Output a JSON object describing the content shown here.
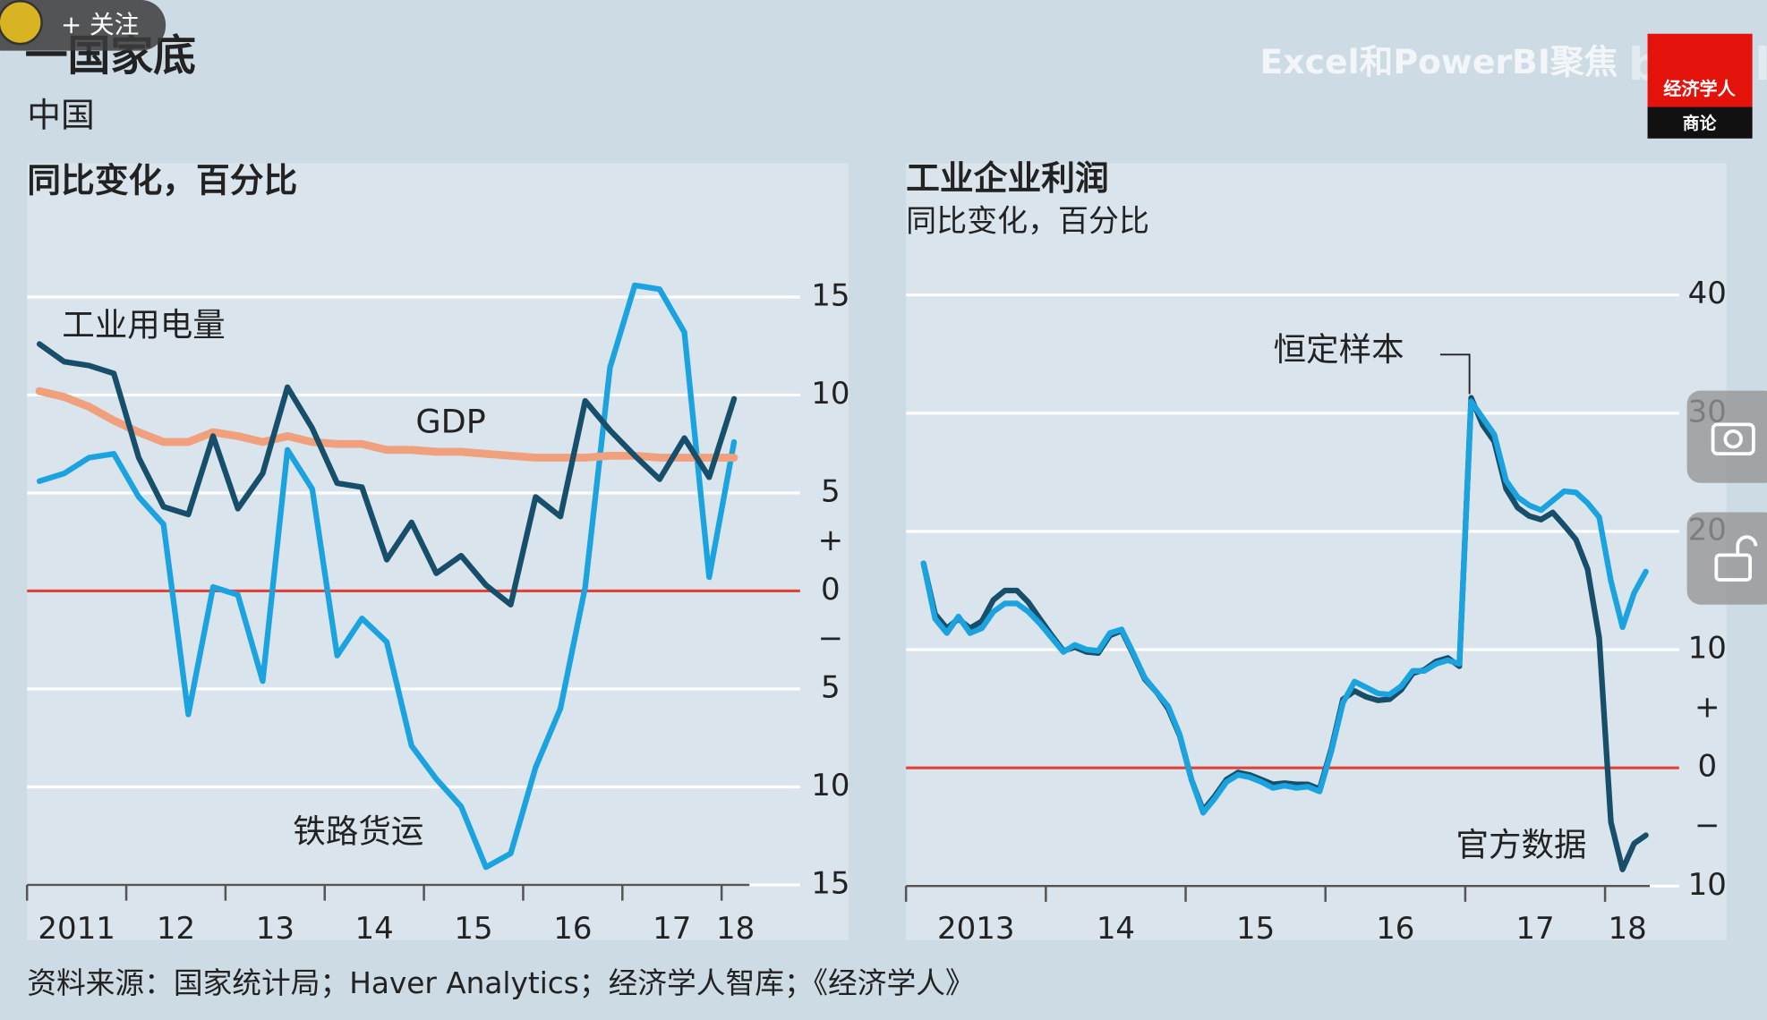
{
  "header": {
    "title": "一国家底",
    "subtitle": "中国"
  },
  "source": "资料来源：国家统计局；Haver Analytics；经济学人智库；《经济学人》",
  "overlay": {
    "follow": "+ 关注",
    "watermark": "Excel和PowerBI聚焦",
    "bilibili": "bilibili",
    "logo": "经济学人",
    "logo_sub": "商论"
  },
  "chart_data": [
    {
      "type": "line",
      "subtitle": "同比变化，百分比",
      "x": [
        2011.125,
        2011.375,
        2011.625,
        2011.875,
        2012.125,
        2012.375,
        2012.625,
        2012.875,
        2013.125,
        2013.375,
        2013.625,
        2013.875,
        2014.125,
        2014.375,
        2014.625,
        2014.875,
        2015.125,
        2015.375,
        2015.625,
        2015.875,
        2016.125,
        2016.375,
        2016.625,
        2016.875,
        2017.125,
        2017.375,
        2017.625,
        2017.875,
        2018.125
      ],
      "xlim": [
        2011,
        2018.28
      ],
      "xticks": [
        {
          "value": 2011,
          "label": "2011"
        },
        {
          "value": 2012,
          "label": "12"
        },
        {
          "value": 2013,
          "label": "13"
        },
        {
          "value": 2014,
          "label": "14"
        },
        {
          "value": 2015,
          "label": "15"
        },
        {
          "value": 2016,
          "label": "16"
        },
        {
          "value": 2017,
          "label": "17"
        },
        {
          "value": 2018,
          "label": "18"
        }
      ],
      "ylim": [
        -15,
        17
      ],
      "yticks": [
        15,
        10,
        5,
        0,
        {
          "value": -5,
          "label": "5"
        },
        {
          "value": -10,
          "label": "10"
        },
        {
          "value": -15,
          "label": "15"
        }
      ],
      "sign_labels": [
        {
          "value": 2.5,
          "label": "+"
        },
        {
          "value": -2.5,
          "label": "−"
        }
      ],
      "grid": true,
      "zero_line_color": "#e0433a",
      "series": [
        {
          "name": "铁路货运",
          "color": "#1ba3e0",
          "values": [
            5.6,
            6.0,
            6.8,
            7.0,
            4.8,
            3.4,
            -6.3,
            0.2,
            -0.2,
            -4.6,
            7.2,
            5.2,
            -3.3,
            -1.4,
            -2.6,
            -7.9,
            -9.6,
            -11.0,
            -14.1,
            -13.4,
            -9.0,
            -6.0,
            0.2,
            11.4,
            15.6,
            15.4,
            13.2,
            0.7,
            7.6
          ]
        },
        {
          "name": "GDP",
          "color": "#f0a07c",
          "values": [
            10.2,
            9.9,
            9.4,
            8.7,
            8.1,
            7.6,
            7.6,
            8.1,
            7.9,
            7.6,
            7.9,
            7.6,
            7.5,
            7.5,
            7.2,
            7.2,
            7.1,
            7.1,
            7.0,
            6.9,
            6.8,
            6.8,
            6.8,
            6.9,
            6.9,
            6.8,
            6.8,
            6.8,
            6.8
          ]
        },
        {
          "name": "工业用电量",
          "color": "#174f6a",
          "values": [
            12.6,
            11.7,
            11.5,
            11.1,
            6.8,
            4.3,
            3.9,
            7.9,
            4.2,
            6.0,
            10.4,
            8.3,
            5.5,
            5.3,
            1.6,
            3.5,
            0.9,
            1.8,
            0.3,
            -0.7,
            4.8,
            3.8,
            9.7,
            8.2,
            6.9,
            5.7,
            7.8,
            5.8,
            9.8
          ]
        }
      ]
    },
    {
      "type": "line",
      "title": "工业企业利润",
      "subtitle": "同比变化，百分比",
      "x": [
        2013.125,
        2013.208,
        2013.292,
        2013.375,
        2013.458,
        2013.542,
        2013.625,
        2013.708,
        2013.792,
        2013.875,
        2013.958,
        2014.042,
        2014.125,
        2014.208,
        2014.292,
        2014.375,
        2014.458,
        2014.542,
        2014.625,
        2014.708,
        2014.792,
        2014.875,
        2014.958,
        2015.042,
        2015.125,
        2015.208,
        2015.292,
        2015.375,
        2015.458,
        2015.542,
        2015.625,
        2015.708,
        2015.792,
        2015.875,
        2015.958,
        2016.042,
        2016.125,
        2016.208,
        2016.292,
        2016.375,
        2016.458,
        2016.542,
        2016.625,
        2016.708,
        2016.792,
        2016.875,
        2016.958,
        2017.042,
        2017.125,
        2017.208,
        2017.292,
        2017.375,
        2017.458,
        2017.542,
        2017.625,
        2017.708,
        2017.792,
        2017.875,
        2017.958,
        2018.042,
        2018.125,
        2018.208,
        2018.292
      ],
      "xlim": [
        2013,
        2018.32
      ],
      "xticks": [
        {
          "value": 2013,
          "label": "2013"
        },
        {
          "value": 2014,
          "label": "14"
        },
        {
          "value": 2015,
          "label": "15"
        },
        {
          "value": 2016,
          "label": "16"
        },
        {
          "value": 2017,
          "label": "17"
        },
        {
          "value": 2018,
          "label": "18"
        }
      ],
      "ylim": [
        -10,
        44
      ],
      "yticks": [
        40,
        30,
        20,
        10,
        0,
        {
          "value": -10,
          "label": "10"
        }
      ],
      "sign_labels": [
        {
          "value": 5,
          "label": "+"
        },
        {
          "value": -5,
          "label": "−"
        }
      ],
      "grid": true,
      "zero_line_color": "#e0433a",
      "series": [
        {
          "name": "官方数据",
          "color": "#174f6a",
          "values": [
            17.3,
            13.0,
            11.8,
            12.6,
            11.8,
            12.4,
            14.2,
            15.0,
            15.0,
            14.0,
            12.6,
            11.2,
            9.9,
            10.2,
            9.8,
            9.7,
            11.2,
            11.6,
            9.6,
            7.5,
            6.4,
            5.0,
            2.7,
            -1.0,
            -3.6,
            -2.4,
            -1.0,
            -0.4,
            -0.6,
            -1.0,
            -1.4,
            -1.3,
            -1.4,
            -1.4,
            -1.8,
            1.6,
            5.8,
            6.5,
            6.0,
            5.7,
            5.8,
            6.6,
            8.0,
            8.3,
            9.0,
            9.3,
            8.6,
            31.3,
            29.0,
            27.6,
            23.6,
            22.0,
            21.3,
            21.0,
            21.6,
            20.5,
            19.3,
            16.8,
            11.0,
            -4.6,
            -8.6,
            -6.4,
            -5.7
          ]
        },
        {
          "name": "恒定样本",
          "color": "#1ba3e0",
          "values": [
            17.3,
            12.6,
            11.4,
            12.8,
            11.4,
            11.8,
            13.2,
            13.9,
            13.9,
            13.2,
            12.2,
            11.0,
            9.8,
            10.4,
            10.0,
            9.9,
            11.4,
            11.7,
            9.7,
            7.6,
            6.4,
            5.2,
            2.8,
            -1.0,
            -3.8,
            -2.6,
            -1.2,
            -0.6,
            -0.8,
            -1.2,
            -1.7,
            -1.5,
            -1.7,
            -1.6,
            -2.0,
            1.4,
            5.5,
            7.3,
            6.8,
            6.3,
            6.2,
            6.9,
            8.2,
            8.2,
            8.8,
            9.1,
            8.8,
            31.0,
            29.6,
            28.2,
            24.3,
            22.9,
            22.2,
            21.8,
            22.6,
            23.4,
            23.3,
            22.4,
            21.2,
            15.8,
            11.9,
            14.8,
            16.6
          ]
        }
      ]
    }
  ]
}
